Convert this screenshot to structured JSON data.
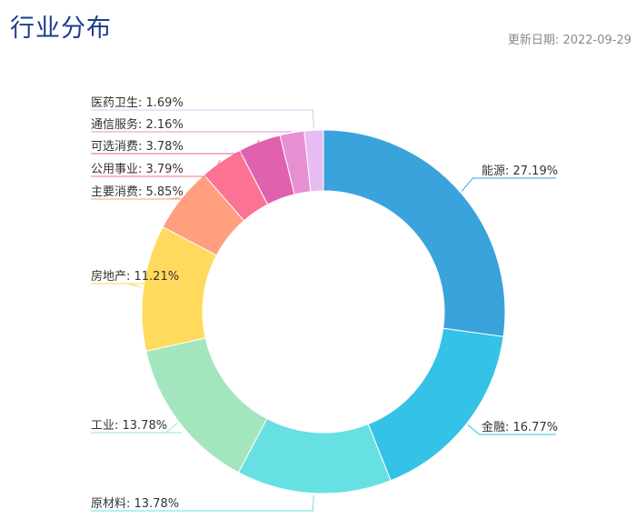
{
  "header": {
    "title": "行业分布",
    "updated_label": "更新日期:",
    "updated_date": "2022-09-29"
  },
  "chart_data": {
    "type": "pie",
    "variant": "donut",
    "categories": [
      "能源",
      "金融",
      "原材料",
      "工业",
      "房地产",
      "主要消费",
      "公用事业",
      "可选消费",
      "通信服务",
      "医药卫生"
    ],
    "values": [
      27.19,
      16.77,
      13.78,
      13.78,
      11.21,
      5.85,
      3.79,
      3.78,
      2.16,
      1.69
    ],
    "labels": [
      "能源: 27.19%",
      "金融: 16.77%",
      "原材料: 13.78%",
      "工业: 13.78%",
      "房地产: 11.21%",
      "主要消费: 5.85%",
      "公用事业: 3.79%",
      "可选消费: 3.78%",
      "通信服务: 2.16%",
      "医药卫生: 1.69%"
    ],
    "unit": "%",
    "colors": [
      "#3ba3dc",
      "#34c3e6",
      "#67e0e3",
      "#a3e6bd",
      "#ffda5c",
      "#ff9f7f",
      "#fb7293",
      "#e062ae",
      "#e690d1",
      "#e7bcf3"
    ],
    "legend": "none"
  }
}
